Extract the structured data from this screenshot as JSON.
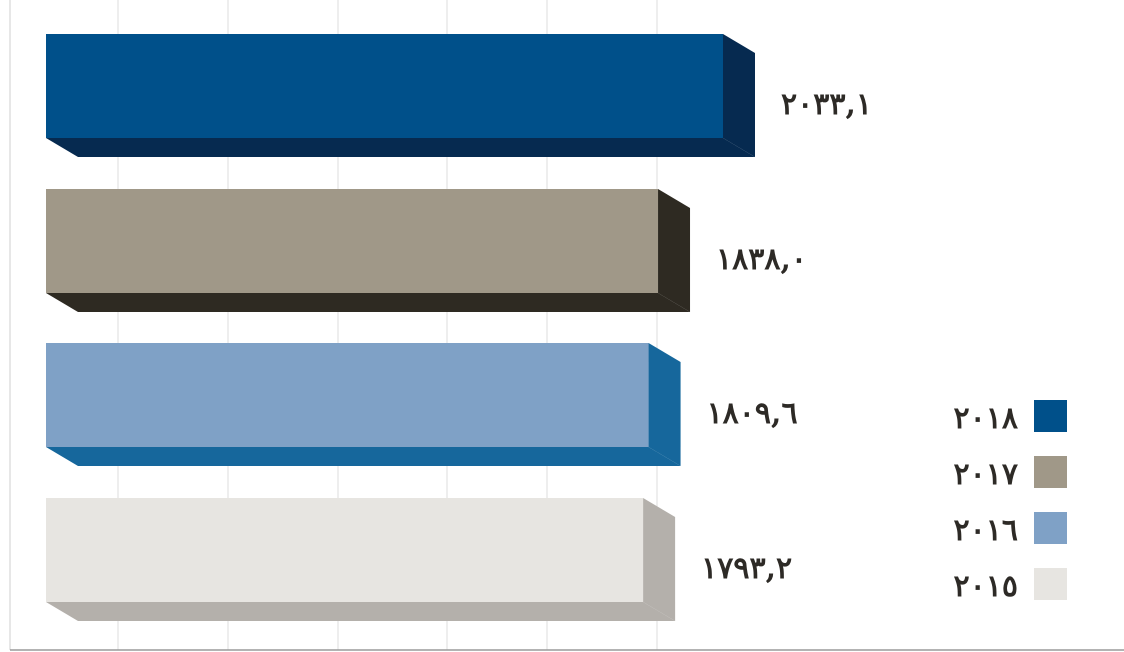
{
  "chart_data": {
    "type": "bar",
    "orientation": "horizontal",
    "style": "3d",
    "title": "",
    "xlabel": "",
    "ylabel": "",
    "grid": "vertical",
    "legend_position": "bottom-right",
    "series": [
      {
        "name": "٢٠١٨",
        "value": 2033.1,
        "label": "٢٠٣٣,١",
        "color": "#00508a",
        "dark": "#062a50"
      },
      {
        "name": "٢٠١٧",
        "value": 1838.0,
        "label": "١٨٣٨,٠",
        "color": "#a09888",
        "dark": "#2e2a22"
      },
      {
        "name": "٢٠١٦",
        "value": 1809.6,
        "label": "١٨٠٩,٦",
        "color": "#7fa1c6",
        "dark": "#16679c"
      },
      {
        "name": "٢٠١٥",
        "value": 1793.2,
        "label": "١٧٩٣,٢",
        "color": "#e7e5e1",
        "dark": "#b4b0ab"
      }
    ]
  }
}
